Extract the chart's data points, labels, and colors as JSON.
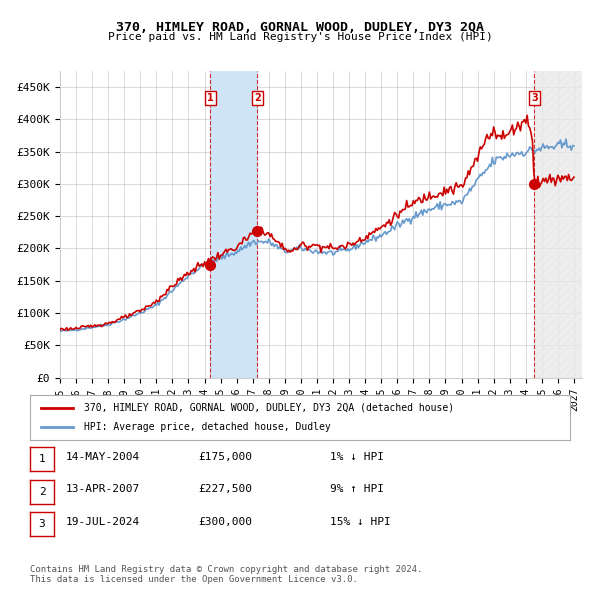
{
  "title": "370, HIMLEY ROAD, GORNAL WOOD, DUDLEY, DY3 2QA",
  "subtitle": "Price paid vs. HM Land Registry's House Price Index (HPI)",
  "xlabel": "",
  "ylabel": "",
  "ylim": [
    0,
    475000
  ],
  "yticks": [
    0,
    50000,
    100000,
    150000,
    200000,
    250000,
    300000,
    350000,
    400000,
    450000
  ],
  "ytick_labels": [
    "£0",
    "£50K",
    "£100K",
    "£150K",
    "£200K",
    "£250K",
    "£300K",
    "£350K",
    "£400K",
    "£450K"
  ],
  "xlim_start": 1995.0,
  "xlim_end": 2027.5,
  "xtick_years": [
    1995,
    1996,
    1997,
    1998,
    1999,
    2000,
    2001,
    2002,
    2003,
    2004,
    2005,
    2006,
    2007,
    2008,
    2009,
    2010,
    2011,
    2012,
    2013,
    2014,
    2015,
    2016,
    2017,
    2018,
    2019,
    2020,
    2021,
    2022,
    2023,
    2024,
    2025,
    2026,
    2027
  ],
  "hpi_line_color": "#6699cc",
  "price_line_color": "#cc0000",
  "dot_color": "#cc0000",
  "sale1_x": 2004.37,
  "sale1_y": 175000,
  "sale1_label": "1",
  "sale2_x": 2007.28,
  "sale2_y": 227500,
  "sale2_label": "2",
  "sale3_x": 2024.54,
  "sale3_y": 300000,
  "sale3_label": "3",
  "shade_x1": 2004.37,
  "shade_x2": 2007.28,
  "shade_color": "#d0e4f7",
  "hatch_x": 2024.54,
  "hatch_color": "#d0d0d0",
  "legend_line1": "370, HIMLEY ROAD, GORNAL WOOD, DUDLEY, DY3 2QA (detached house)",
  "legend_line2": "HPI: Average price, detached house, Dudley",
  "table_data": [
    [
      "1",
      "14-MAY-2004",
      "£175,000",
      "1% ↓ HPI"
    ],
    [
      "2",
      "13-APR-2007",
      "£227,500",
      "9% ↑ HPI"
    ],
    [
      "3",
      "19-JUL-2024",
      "£300,000",
      "15% ↓ HPI"
    ]
  ],
  "footer": "Contains HM Land Registry data © Crown copyright and database right 2024.\nThis data is licensed under the Open Government Licence v3.0.",
  "background_color": "#ffffff",
  "grid_color": "#cccccc"
}
